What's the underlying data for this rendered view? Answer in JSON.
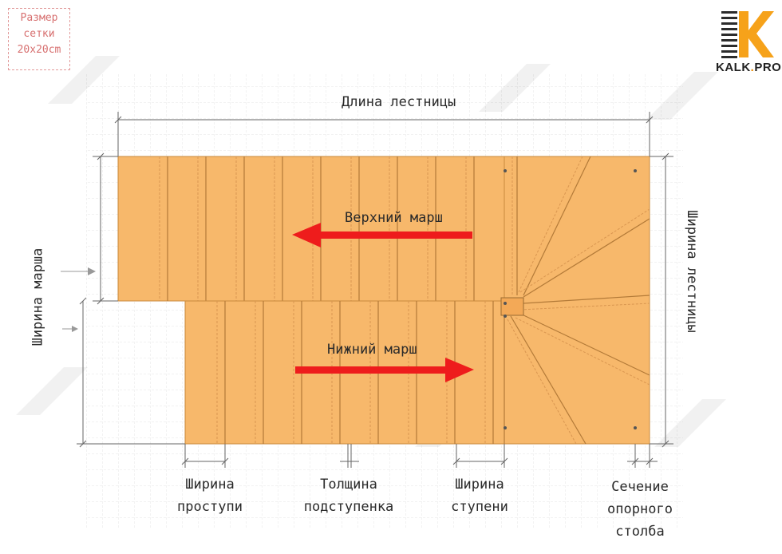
{
  "grid_note": {
    "line1": "Размер",
    "line2": "сетки",
    "line3": "20x20cm"
  },
  "logo": {
    "name": "KALK",
    "dot": ".",
    "pro": "PRO",
    "icon": "kalk-pro-logo-icon"
  },
  "watermark": "KALK.PRO",
  "labels": {
    "length": "Длина лестницы",
    "upper_flight": "Верхний марш",
    "lower_flight": "Нижний марш",
    "flight_width": "Ширина марша",
    "stair_width": "Ширина лестницы",
    "tread_width": [
      "Ширина",
      "проступи"
    ],
    "riser_thickness": [
      "Толщина",
      "подступенка"
    ],
    "step_width": [
      "Ширина",
      "ступени"
    ],
    "post_section": [
      "Сечение",
      "опорного",
      "столба"
    ]
  },
  "colors": {
    "stair_fill": "#f7b86b",
    "arrow": "#ee1c1c",
    "dim_line": "#666666",
    "grid": "#e6e6e6"
  }
}
